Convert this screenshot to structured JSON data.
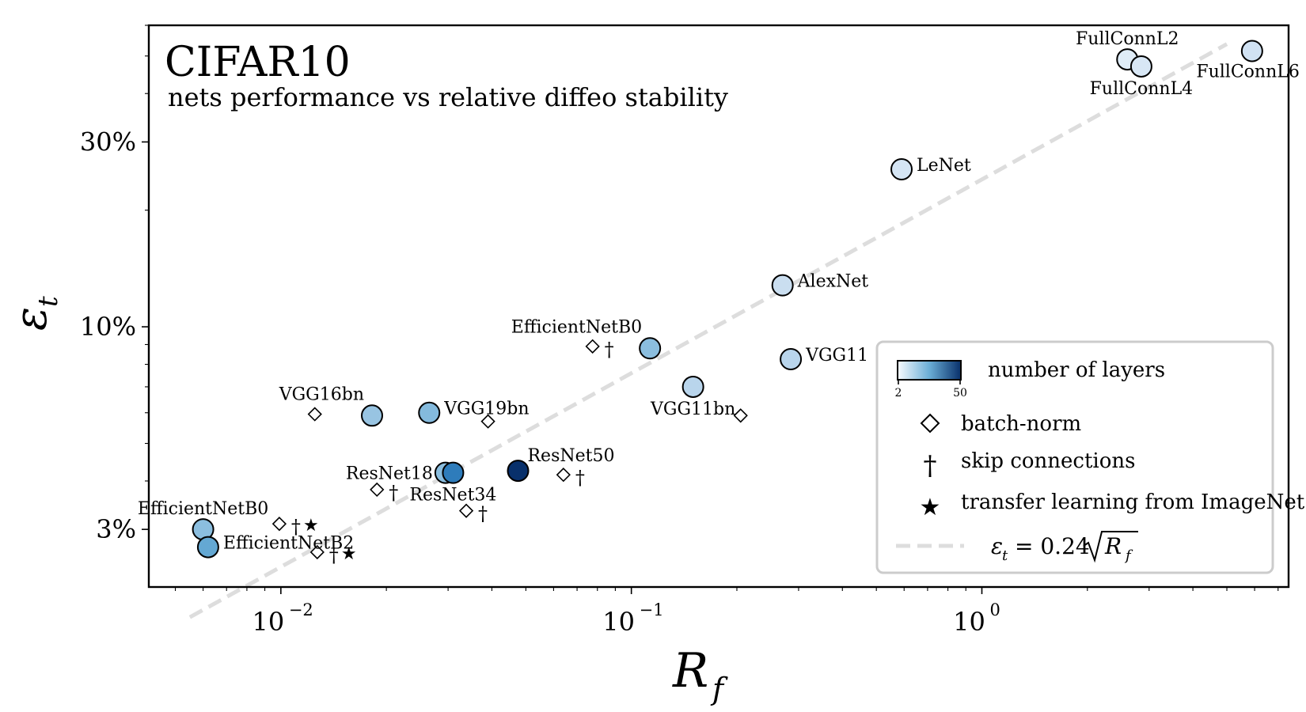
{
  "chart_data": {
    "type": "scatter",
    "title": "CIFAR10",
    "subtitle": "nets performance vs relative diffeo stability",
    "xlabel": "R",
    "xlabel_sub": "f",
    "ylabel": "ε",
    "ylabel_sub": "t",
    "xscale": "log",
    "yscale": "log",
    "xlim": [
      0.0042,
      7.5
    ],
    "ylim": [
      2.13,
      60
    ],
    "x_ticks": [
      {
        "value": 0.01,
        "base": "10",
        "exp": "−2"
      },
      {
        "value": 0.1,
        "base": "10",
        "exp": "−1"
      },
      {
        "value": 1,
        "base": "10",
        "exp": "0"
      }
    ],
    "y_ticks": [
      {
        "value": 3,
        "label": "3%"
      },
      {
        "value": 10,
        "label": "10%"
      },
      {
        "value": 30,
        "label": "30%"
      }
    ],
    "colormap": {
      "name": "Blues",
      "min": 2,
      "max": 50,
      "label": "number of layers",
      "min_label": "2",
      "max_label": "50"
    },
    "series": [
      {
        "name": "nets",
        "marker": "circle",
        "points": [
          {
            "label": "FullConnL2",
            "x": 2.6,
            "y": 49.0,
            "layers": 2,
            "label_pos": "above"
          },
          {
            "label": "FullConnL4",
            "x": 2.85,
            "y": 47.0,
            "layers": 4,
            "label_pos": "below"
          },
          {
            "label": "FullConnL6",
            "x": 5.9,
            "y": 51.5,
            "layers": 6,
            "label_pos": "below-left"
          },
          {
            "label": "LeNet",
            "x": 0.59,
            "y": 25.5,
            "layers": 5,
            "label_pos": "right"
          },
          {
            "label": "AlexNet",
            "x": 0.27,
            "y": 12.8,
            "layers": 8,
            "label_pos": "right"
          },
          {
            "label": "VGG11",
            "x": 0.285,
            "y": 8.25,
            "layers": 11,
            "label_pos": "right"
          },
          {
            "label": "VGG11bn",
            "x": 0.15,
            "y": 7.0,
            "layers": 11,
            "label_pos": "below"
          },
          {
            "label": "EfficientNetB0",
            "x": 0.113,
            "y": 8.8,
            "layers": 18,
            "label_pos": "above-left"
          },
          {
            "label": "VGG16bn",
            "x": 0.0182,
            "y": 5.9,
            "layers": 16,
            "label_pos": "above-left"
          },
          {
            "label": "VGG19bn",
            "x": 0.0265,
            "y": 6.0,
            "layers": 19,
            "label_pos": "right"
          },
          {
            "label": "ResNet18",
            "x": 0.0295,
            "y": 4.2,
            "layers": 18,
            "label_pos": "left"
          },
          {
            "label": "ResNet34",
            "x": 0.031,
            "y": 4.2,
            "layers": 34,
            "label_pos": "below"
          },
          {
            "label": "ResNet50",
            "x": 0.0475,
            "y": 4.25,
            "layers": 50,
            "label_pos": "above-right"
          },
          {
            "label": "EfficientNetB0",
            "x": 0.006,
            "y": 3.0,
            "layers": 18,
            "label_pos": "above"
          },
          {
            "label": "EfficientNetB2",
            "x": 0.0062,
            "y": 2.7,
            "layers": 24,
            "label_pos": "right"
          }
        ]
      },
      {
        "name": "batch-norm markers",
        "marker": "diamond",
        "points": [
          {
            "x": 0.0775,
            "y": 8.9,
            "skip": true,
            "transfer": false
          },
          {
            "x": 0.205,
            "y": 5.9,
            "skip": false,
            "transfer": false
          },
          {
            "x": 0.0125,
            "y": 5.95,
            "skip": false,
            "transfer": false
          },
          {
            "x": 0.039,
            "y": 5.7,
            "skip": false,
            "transfer": false
          },
          {
            "x": 0.0188,
            "y": 3.8,
            "skip": true,
            "transfer": false
          },
          {
            "x": 0.0338,
            "y": 3.35,
            "skip": true,
            "transfer": false
          },
          {
            "x": 0.064,
            "y": 4.15,
            "skip": true,
            "transfer": false
          },
          {
            "x": 0.0099,
            "y": 3.1,
            "skip": true,
            "transfer": true
          },
          {
            "x": 0.0127,
            "y": 2.62,
            "skip": true,
            "transfer": true
          }
        ]
      },
      {
        "name": "fit",
        "type": "line",
        "style": "dashed",
        "color": "#dddddd",
        "formula_coef": 0.24,
        "x_range": [
          0.0055,
          5.0
        ]
      }
    ],
    "legend": {
      "placement": "lower-right",
      "entries": [
        {
          "kind": "colorbar",
          "label": "number of layers"
        },
        {
          "kind": "diamond",
          "label": "batch-norm"
        },
        {
          "kind": "dagger",
          "label": "skip connections"
        },
        {
          "kind": "star",
          "label": "transfer learning from ImageNet"
        },
        {
          "kind": "dashed-line",
          "label": "= 0.24"
        }
      ]
    },
    "symbols": {
      "dagger": "†",
      "star": "★"
    }
  },
  "colors": {
    "cmap_light": "#f7fbff",
    "cmap_mid": "#6baed6",
    "cmap_dark": "#08306b",
    "fit_line": "#dddddd",
    "legend_border": "#cccccc"
  }
}
